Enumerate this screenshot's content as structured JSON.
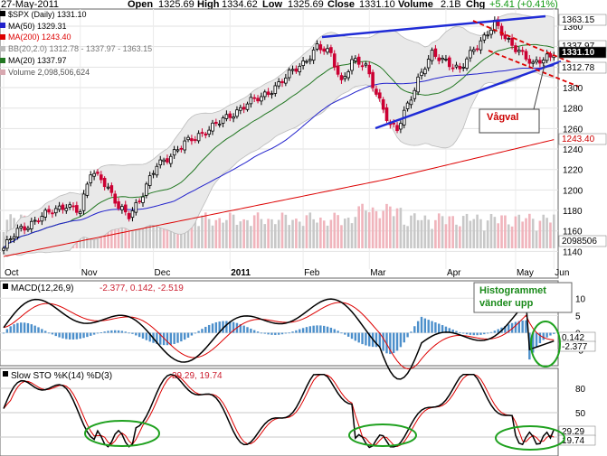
{
  "header": {
    "date": "27-May-2011",
    "open_label": "Open",
    "open": "1325.69",
    "high_label": "High",
    "high": "1334.62",
    "low_label": "Low",
    "low": "1325.69",
    "close_label": "Close",
    "close": "1331.10",
    "volume_label": "Volume",
    "volume": "2.1B",
    "chg_label": "Chg",
    "chg": "+5.41 (+0.41%)"
  },
  "legend": [
    {
      "text": "$SPX (Daily) 1331.10",
      "color": "#000000"
    },
    {
      "text": "MA(50) 1329.31",
      "color": "#2222cc"
    },
    {
      "text": "MA(200) 1243.40",
      "color": "#dd0000"
    },
    {
      "text": "BB(20,2.0) 1312.78 - 1337.97 - 1363.15",
      "color": "#9a9a9a"
    },
    {
      "text": "MA(20) 1337.97",
      "color": "#227722"
    },
    {
      "text": "Volume 2,098,506,624",
      "color": "#555555"
    }
  ],
  "annotations": {
    "vagval": "Vågval",
    "hist_line1": "Histogrammet",
    "hist_line2": "vänder upp"
  },
  "colors": {
    "up": "#000000",
    "down": "#cc0033",
    "ma50": "#2222cc",
    "ma200": "#dd0000",
    "ma20": "#227722",
    "bb": "#bbbbbb",
    "channel": "#1f2bd6",
    "annotation": "#dd0000",
    "oval": "#1fa11f",
    "vol_up": "#c8c8c8",
    "vol_down": "#f0b4bc",
    "macd_hist": "#4c8fcb"
  },
  "chart_data": [
    {
      "type": "candlestick",
      "title": "$SPX (Daily)",
      "x_labels": [
        "Oct",
        "Nov",
        "Dec",
        "2011",
        "Feb",
        "Mar",
        "Apr",
        "May",
        "Jun"
      ],
      "y_ticks": [
        1140,
        1160,
        1180,
        1200,
        1220,
        1240,
        1260,
        1280,
        1300,
        1320,
        1340,
        1360
      ],
      "ylim": [
        1128,
        1375
      ],
      "grid": true,
      "price_labels": [
        "1363.15",
        "1337.97",
        "1331.10",
        "1312.78",
        "1243.40",
        "2098506"
      ],
      "anchors": [
        {
          "d": 0,
          "v": 1143
        },
        {
          "d": 4,
          "v": 1160
        },
        {
          "d": 10,
          "v": 1172
        },
        {
          "d": 18,
          "v": 1186
        },
        {
          "d": 22,
          "v": 1178
        },
        {
          "d": 25,
          "v": 1218
        },
        {
          "d": 28,
          "v": 1213
        },
        {
          "d": 33,
          "v": 1182
        },
        {
          "d": 36,
          "v": 1176
        },
        {
          "d": 40,
          "v": 1196
        },
        {
          "d": 44,
          "v": 1224
        },
        {
          "d": 52,
          "v": 1245
        },
        {
          "d": 58,
          "v": 1258
        },
        {
          "d": 64,
          "v": 1270
        },
        {
          "d": 70,
          "v": 1285
        },
        {
          "d": 74,
          "v": 1290
        },
        {
          "d": 80,
          "v": 1307
        },
        {
          "d": 86,
          "v": 1324
        },
        {
          "d": 90,
          "v": 1340
        },
        {
          "d": 94,
          "v": 1332
        },
        {
          "d": 97,
          "v": 1306
        },
        {
          "d": 100,
          "v": 1326
        },
        {
          "d": 104,
          "v": 1320
        },
        {
          "d": 108,
          "v": 1288
        },
        {
          "d": 111,
          "v": 1262
        },
        {
          "d": 113,
          "v": 1258
        },
        {
          "d": 115,
          "v": 1276
        },
        {
          "d": 119,
          "v": 1308
        },
        {
          "d": 123,
          "v": 1332
        },
        {
          "d": 127,
          "v": 1327
        },
        {
          "d": 131,
          "v": 1316
        },
        {
          "d": 135,
          "v": 1338
        },
        {
          "d": 139,
          "v": 1354
        },
        {
          "d": 141,
          "v": 1362
        },
        {
          "d": 144,
          "v": 1348
        },
        {
          "d": 148,
          "v": 1337
        },
        {
          "d": 152,
          "v": 1321
        },
        {
          "d": 156,
          "v": 1331
        },
        {
          "d": 158,
          "v": 1331
        }
      ],
      "channel": {
        "upper": [
          [
            1312,
            1358
          ],
          [
            1364,
            1346
          ]
        ],
        "lower": [
          [
            1257,
            1316
          ],
          [
            1313,
            1348
          ]
        ]
      },
      "wedge": {
        "upper": [
          [
            1363,
            1398
          ],
          [
            1345,
            1325
          ]
        ],
        "lower": [
          [
            1347,
            1365
          ],
          [
            1325,
            1301
          ]
        ]
      },
      "ma_values": {
        "ma20": 1337.97,
        "ma50": 1329.31,
        "ma200": 1243.4
      }
    },
    {
      "type": "line",
      "title": "MACD(12,26,9)",
      "values_text": "-2.377, 0.142, -2.519",
      "series": [
        {
          "name": "MACD",
          "last": -2.377
        },
        {
          "name": "Signal",
          "last": 0.142
        },
        {
          "name": "Histogram",
          "last": -2.519
        }
      ],
      "y_ticks": [
        -5,
        0,
        5,
        10
      ],
      "ylim": [
        -9,
        14
      ],
      "value_labels": [
        "0.142",
        "-2.377"
      ]
    },
    {
      "type": "line",
      "title": "Slow STO %K(14) %D(3)",
      "values_text": "29.29, 19.74",
      "series": [
        {
          "name": "%K",
          "last": 29.29
        },
        {
          "name": "%D",
          "last": 19.74
        }
      ],
      "y_ticks": [
        20,
        50,
        80
      ],
      "ylim": [
        0,
        100
      ],
      "value_labels": [
        "29.29",
        "19.74"
      ]
    }
  ]
}
